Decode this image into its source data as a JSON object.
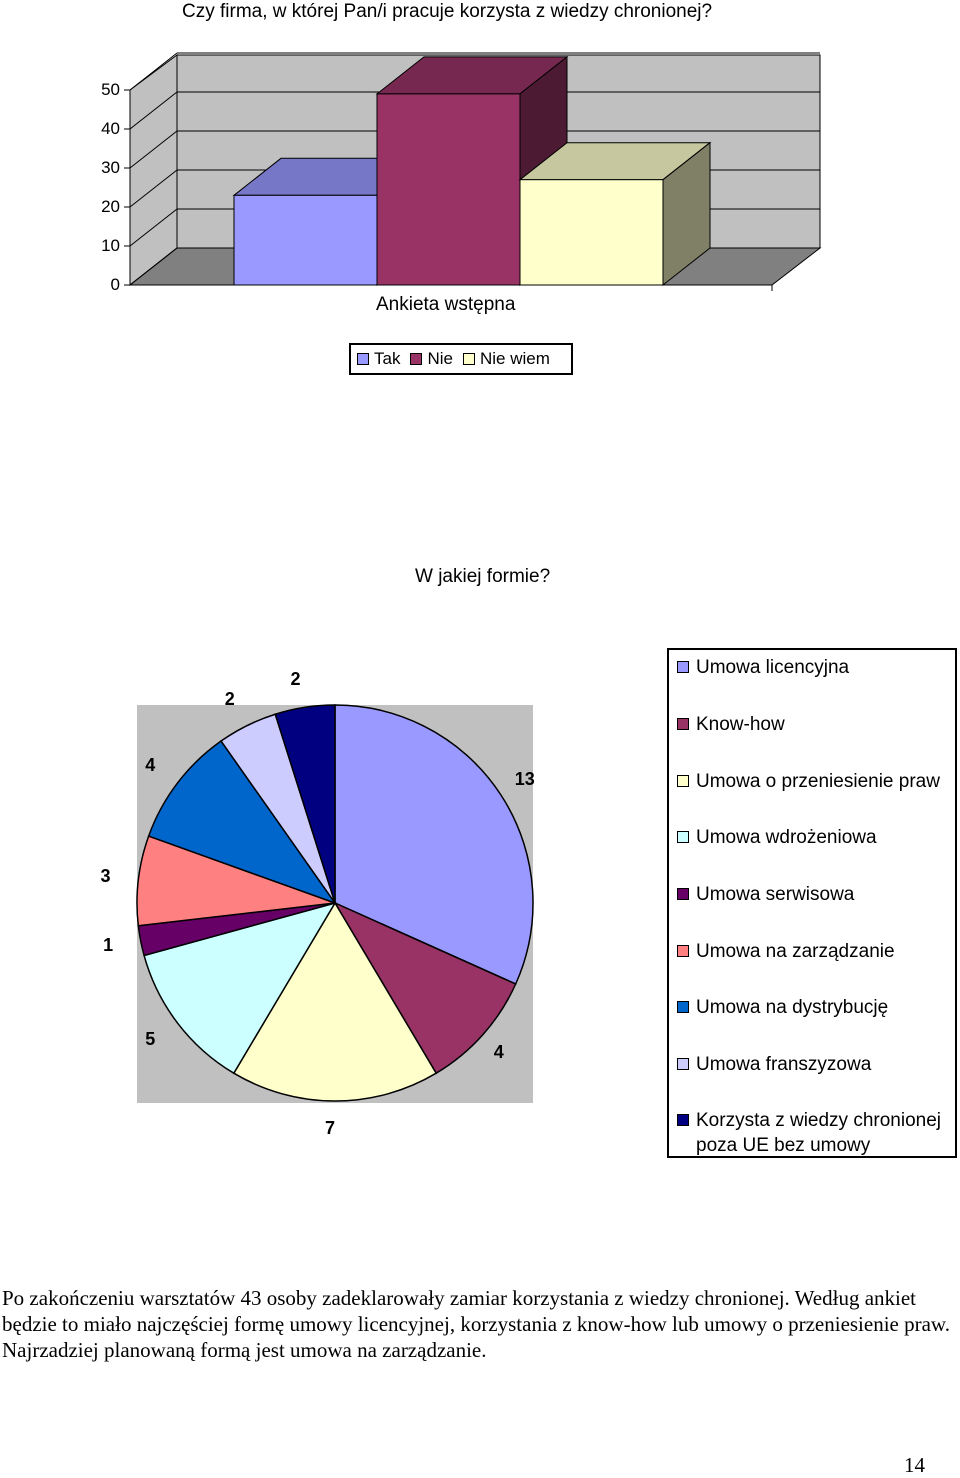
{
  "chart_data": [
    {
      "type": "bar",
      "title": "Czy firma, w której Pan/i pracuje korzysta z wiedzy chronionej?",
      "categories": [
        "Ankieta wstępna"
      ],
      "series": [
        {
          "name": "Tak",
          "values": [
            23
          ],
          "color": "#9999ff"
        },
        {
          "name": "Nie",
          "values": [
            49
          ],
          "color": "#993366"
        },
        {
          "name": "Nie wiem",
          "values": [
            27
          ],
          "color": "#ffffcc"
        }
      ],
      "ylim": [
        0,
        50
      ],
      "yticks": [
        "0",
        "10",
        "20",
        "30",
        "40",
        "50"
      ],
      "grid": true,
      "three_d": true,
      "legend_position": "bottom"
    },
    {
      "type": "pie",
      "title": "W jakiej formie?",
      "series": [
        {
          "name": "Umowa licencyjna",
          "values": [
            13
          ],
          "color": "#9999ff"
        },
        {
          "name": "Know-how",
          "values": [
            4
          ],
          "color": "#993366"
        },
        {
          "name": "Umowa o przeniesienie praw",
          "values": [
            7
          ],
          "color": "#ffffcc"
        },
        {
          "name": "Umowa wdrożeniowa",
          "values": [
            5
          ],
          "color": "#ccffff"
        },
        {
          "name": "Umowa serwisowa",
          "values": [
            1
          ],
          "color": "#660066"
        },
        {
          "name": "Umowa na zarządzanie",
          "values": [
            3
          ],
          "color": "#ff8080"
        },
        {
          "name": "Umowa na dystrybucję",
          "values": [
            4
          ],
          "color": "#0066cc"
        },
        {
          "name": "Umowa franszyzowa",
          "values": [
            2
          ],
          "color": "#ccccff"
        },
        {
          "name": "Korzysta z wiedzy chronionej poza UE bez umowy",
          "values": [
            2
          ],
          "color": "#000080"
        }
      ],
      "legend_position": "right"
    }
  ],
  "legend1_items": [
    "Tak",
    "Nie",
    "Nie wiem"
  ],
  "legend2_items": [
    "Umowa licencyjna",
    "Know-how",
    "Umowa o przeniesienie praw",
    "Umowa wdrożeniowa",
    "Umowa serwisowa",
    "Umowa na zarządzanie",
    "Umowa na dystrybucję",
    "Umowa franszyzowa",
    "Korzysta z wiedzy chronionej poza UE bez umowy"
  ],
  "paragraph": "Po zakończeniu warsztatów  43 osoby zadeklarowały zamiar korzystania z wiedzy chronionej. Według ankiet będzie to miało najczęściej formę umowy licencyjnej, korzystania z know-how lub umowy o przeniesienie praw. Najrzadziej planowaną formą jest umowa na zarządzanie.",
  "page_number": "14"
}
